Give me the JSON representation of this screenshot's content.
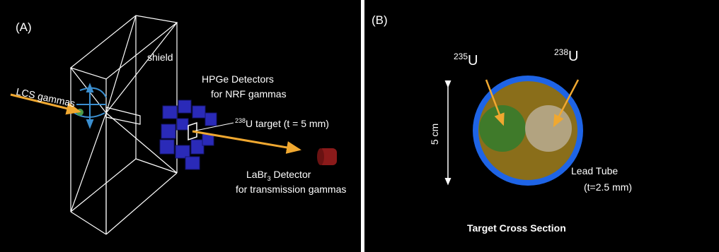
{
  "panel_a": {
    "label": "(A)",
    "shield_label": "shield",
    "lcs_label": "LCS gammas",
    "hpge_line1": "HPGe Detectors",
    "hpge_line2": "for NRF gammas",
    "target_sup": "238",
    "target_rest": "U target (t = 5 mm)",
    "labr_main": "LaBr",
    "labr_sub": "3",
    "labr_rest": " Detector",
    "labr_line2": "for transmission gammas",
    "colors": {
      "beam": "#f0a830",
      "detector": "#2a2ab8",
      "labr": "#8b1a1a",
      "wire": "#ffffff",
      "source": "#3b8fd0"
    }
  },
  "panel_b": {
    "label": "(B)",
    "u235_sup": "235",
    "u235_letter": "U",
    "u238_sup": "238",
    "u238_letter": "U",
    "scale_label": "5 cm",
    "lead_line1": "Lead Tube",
    "lead_line2": "(t=2.5 mm)",
    "caption": "Target Cross Section",
    "colors": {
      "tube": "#1e64e6",
      "fill": "#8a6e1a",
      "u235": "#3f7a2a",
      "u238": "#b9ad93",
      "arrow": "#f0a830"
    }
  }
}
